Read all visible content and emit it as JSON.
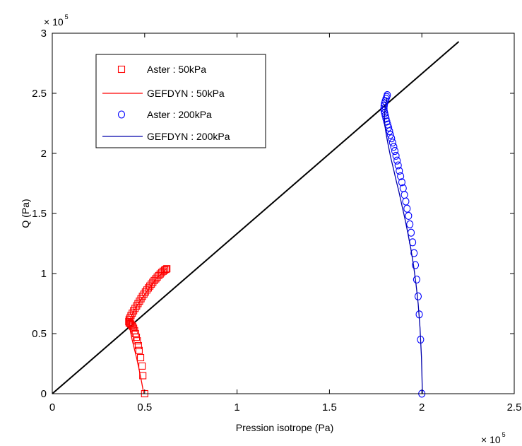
{
  "chart_data": {
    "type": "scatter",
    "title": "",
    "xlabel": "Pression isotrope (Pa)",
    "ylabel": "Q (Pa)",
    "xlim": [
      0,
      250000
    ],
    "ylim": [
      0,
      300000
    ],
    "grid": false,
    "legend_position": "top-left",
    "x_ticks": [
      "0",
      "0.5",
      "1",
      "1.5",
      "2",
      "2.5"
    ],
    "y_ticks": [
      "0",
      "0.5",
      "1",
      "1.5",
      "2",
      "2.5",
      "3"
    ],
    "x_tick_values": [
      0,
      50000,
      100000,
      150000,
      200000,
      250000
    ],
    "y_tick_values": [
      0,
      50000,
      100000,
      150000,
      200000,
      250000,
      300000
    ],
    "x_exponent": {
      "base": "× 10",
      "power": "5"
    },
    "y_exponent": {
      "base": "× 10",
      "power": "5"
    },
    "reference_line": {
      "color": "#000000",
      "x": [
        0,
        220000
      ],
      "y": [
        0,
        293000
      ]
    },
    "series": [
      {
        "name": "Aster : 50kPa",
        "kind": "markers",
        "marker": "square",
        "color": "#ff0000",
        "x": [
          50000,
          49000,
          48600,
          47800,
          47000,
          46600,
          46000,
          45500,
          45000,
          44500,
          44000,
          43500,
          43000,
          42500,
          42000,
          41600,
          41400,
          41600,
          42000,
          42600,
          43300,
          44000,
          44800,
          45600,
          46400,
          47200,
          48000,
          48800,
          49600,
          50400,
          51200,
          52000,
          52800,
          53600,
          54400,
          55200,
          56000,
          56800,
          57600,
          58400,
          59200,
          60000,
          60800,
          61500,
          62000
        ],
        "y": [
          0,
          15000,
          23000,
          30000,
          36000,
          40000,
          44000,
          47000,
          50000,
          52500,
          54500,
          56000,
          57000,
          58000,
          58500,
          59000,
          60000,
          61500,
          63000,
          65000,
          67000,
          69000,
          71000,
          73000,
          75000,
          77000,
          79000,
          81000,
          82800,
          84600,
          86300,
          88000,
          89600,
          91200,
          92700,
          94200,
          95600,
          97000,
          98300,
          99600,
          100800,
          101900,
          102800,
          103500,
          104000
        ]
      },
      {
        "name": "GEFDYN : 50kPa",
        "kind": "line",
        "color": "#ff0000",
        "x": [
          49500,
          48300,
          47000,
          45600,
          44300,
          43200,
          42400,
          41900,
          41700,
          42000,
          42800,
          44000,
          45500,
          47200,
          49000,
          51000,
          53000,
          55000,
          57000,
          59000,
          61000,
          62000
        ],
        "y": [
          0,
          10000,
          20000,
          30000,
          38000,
          45000,
          51000,
          55000,
          58000,
          61000,
          64500,
          68500,
          72500,
          76500,
          80500,
          85000,
          89000,
          93000,
          96800,
          100000,
          102800,
          104000
        ]
      },
      {
        "name": "Aster : 200kPa",
        "kind": "markers",
        "marker": "circle",
        "color": "#0000ff",
        "x": [
          200000,
          199300,
          198600,
          198000,
          197200,
          196500,
          195800,
          195000,
          194200,
          193500,
          192800,
          192000,
          191300,
          190600,
          189900,
          189200,
          188500,
          187800,
          187200,
          186600,
          186000,
          185400,
          184800,
          184200,
          183600,
          183000,
          182500,
          182000,
          181500,
          181000,
          180600,
          180200,
          179900,
          179600,
          179500,
          179600,
          179800,
          180200,
          180600,
          181000,
          181300
        ],
        "y": [
          0,
          45000,
          66000,
          81000,
          95000,
          107000,
          117000,
          126000,
          134000,
          141000,
          148000,
          154000,
          160000,
          165500,
          171000,
          176000,
          181000,
          185500,
          190000,
          194000,
          198000,
          202000,
          205500,
          209000,
          212500,
          215500,
          218500,
          221500,
          224000,
          226500,
          229000,
          231500,
          233500,
          235500,
          237500,
          239500,
          241500,
          243500,
          245500,
          247000,
          248500
        ]
      },
      {
        "name": "GEFDYN : 200kPa",
        "kind": "line",
        "color": "#0000aa",
        "x": [
          200300,
          199800,
          199000,
          198000,
          196800,
          195500,
          194000,
          192400,
          190800,
          189200,
          187600,
          186000,
          184500,
          183100,
          181900,
          180800,
          180000,
          179700,
          180200,
          181000
        ],
        "y": [
          0,
          30000,
          55000,
          75000,
          92000,
          107000,
          121000,
          134000,
          146000,
          157000,
          168000,
          178000,
          188000,
          197000,
          206000,
          215000,
          223000,
          231000,
          239000,
          246000
        ]
      }
    ]
  }
}
